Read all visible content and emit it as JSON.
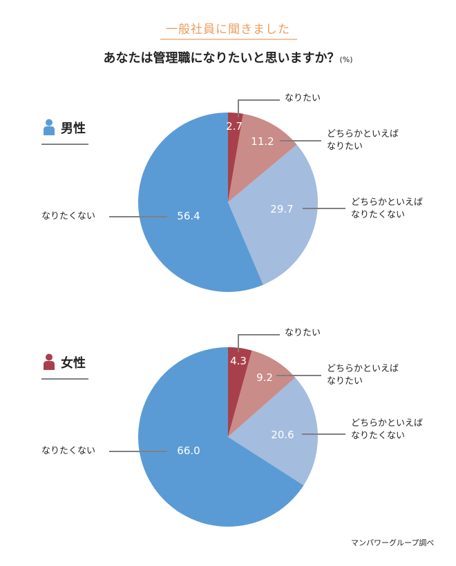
{
  "header": {
    "subtitle": "一般社員に聞きました",
    "title": "あなたは管理職になりたいと思いますか？",
    "unit": "(%)"
  },
  "colors": {
    "subtitle": "#ec9c5c",
    "want": "#a8404b",
    "somewhat_want": "#c98c88",
    "somewhat_not_want": "#a4bcde",
    "not_want": "#5b9bd5",
    "male_icon": "#5b9bd5",
    "female_icon": "#a8404b"
  },
  "legend_labels": {
    "want": "なりたい",
    "somewhat_want_1": "どちらかといえば",
    "somewhat_want_2": "なりたい",
    "somewhat_not_1": "どちらかといえば",
    "somewhat_not_2": "なりたくない",
    "not_want": "なりたくない"
  },
  "male": {
    "label": "男性",
    "icon": "person-icon",
    "values_text": [
      "2.7",
      "11.2",
      "29.7",
      "56.4"
    ]
  },
  "female": {
    "label": "女性",
    "icon": "person-icon",
    "values_text": [
      "4.3",
      "9.2",
      "20.6",
      "66.0"
    ]
  },
  "source": "マンパワーグループ調べ",
  "chart_data": [
    {
      "type": "pie",
      "title": "男性",
      "categories": [
        "なりたい",
        "どちらかといえばなりたい",
        "どちらかといえばなりたくない",
        "なりたくない"
      ],
      "values": [
        2.7,
        11.2,
        29.7,
        56.4
      ],
      "unit": "%",
      "colors": [
        "#a8404b",
        "#c98c88",
        "#a4bcde",
        "#5b9bd5"
      ]
    },
    {
      "type": "pie",
      "title": "女性",
      "categories": [
        "なりたい",
        "どちらかといえばなりたい",
        "どちらかといえばなりたくない",
        "なりたくない"
      ],
      "values": [
        4.3,
        9.2,
        20.6,
        66.0
      ],
      "unit": "%",
      "colors": [
        "#a8404b",
        "#c98c88",
        "#a4bcde",
        "#5b9bd5"
      ]
    }
  ]
}
